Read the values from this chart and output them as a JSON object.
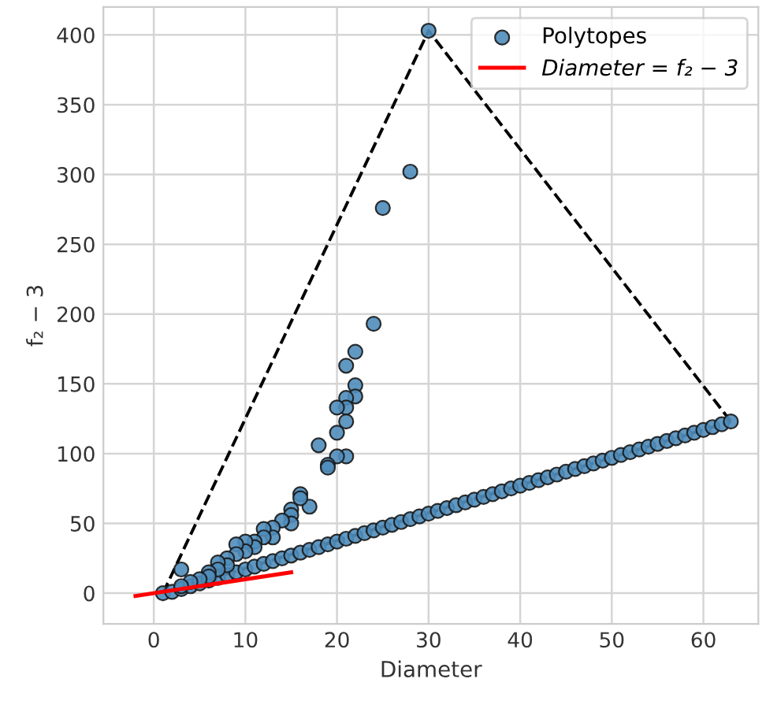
{
  "chart_data": {
    "type": "scatter",
    "xlabel": "Diameter",
    "ylabel": "f₂ − 3",
    "xlim": [
      -5.5,
      66
    ],
    "ylim": [
      -22,
      420
    ],
    "xticks": [
      0,
      10,
      20,
      30,
      40,
      50,
      60
    ],
    "yticks": [
      0,
      50,
      100,
      150,
      200,
      250,
      300,
      350,
      400
    ],
    "grid": true,
    "legend": "top right",
    "series": [
      {
        "name": "Polytopes",
        "marker": "circle",
        "color": "#4f8dbb",
        "x": [
          1,
          2,
          3,
          4,
          5,
          6,
          7,
          8,
          9,
          10,
          11,
          12,
          13,
          14,
          15,
          16,
          17,
          18,
          19,
          20,
          21,
          22,
          23,
          24,
          25,
          26,
          27,
          28,
          29,
          30,
          31,
          32,
          33,
          34,
          35,
          36,
          37,
          38,
          39,
          40,
          41,
          42,
          43,
          44,
          45,
          46,
          47,
          48,
          49,
          50,
          51,
          52,
          53,
          54,
          55,
          56,
          57,
          58,
          59,
          60,
          61,
          62,
          63,
          30,
          28,
          25,
          24,
          22,
          21,
          22,
          22,
          21,
          21,
          21,
          20,
          20,
          21,
          20,
          19,
          19,
          18,
          17,
          16,
          16,
          15,
          15,
          15,
          14,
          13,
          13,
          12,
          12,
          11,
          11,
          10,
          10,
          9,
          9,
          8,
          8,
          7,
          7,
          6,
          6,
          5,
          4,
          3,
          3
        ],
        "values": [
          0,
          1,
          3,
          5,
          7,
          9,
          11,
          13,
          15,
          17,
          19,
          21,
          23,
          25,
          27,
          29,
          31,
          33,
          35,
          37,
          39,
          41,
          43,
          45,
          47,
          49,
          51,
          53,
          55,
          57,
          59,
          61,
          63,
          65,
          67,
          69,
          71,
          73,
          75,
          77,
          79,
          81,
          83,
          85,
          87,
          89,
          91,
          93,
          95,
          97,
          99,
          101,
          103,
          105,
          107,
          109,
          111,
          113,
          115,
          117,
          119,
          121,
          123,
          403,
          302,
          276,
          193,
          173,
          163,
          149,
          141,
          140,
          133,
          123,
          133,
          115,
          98,
          98,
          92,
          90,
          106,
          62,
          71,
          68,
          60,
          56,
          50,
          52,
          47,
          40,
          46,
          40,
          37,
          33,
          37,
          30,
          35,
          28,
          25,
          20,
          22,
          17,
          15,
          12,
          10,
          8,
          17,
          5
        ]
      },
      {
        "name": "Diameter = f₂ − 3",
        "type": "line",
        "color": "#ff0000",
        "marker": "none",
        "line_style": "solid",
        "x": [
          -2,
          15
        ],
        "values": [
          -2,
          15
        ]
      },
      {
        "type": "line",
        "color": "#000000",
        "marker": "none",
        "line_style": "dashed",
        "x": [
          1,
          30,
          63
        ],
        "values": [
          0,
          403,
          123
        ]
      },
      {
        "type": "line",
        "color": "#000000",
        "marker": "none",
        "line_style": "dashed",
        "x": [
          1,
          63
        ],
        "values": [
          0,
          123
        ]
      }
    ]
  }
}
